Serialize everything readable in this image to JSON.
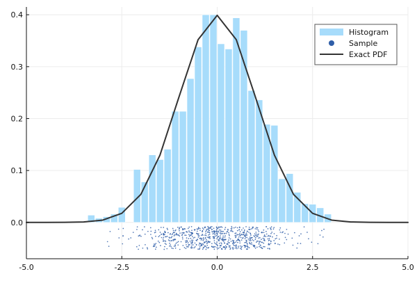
{
  "chart_data": {
    "type": "bar",
    "xlim": [
      -5.0,
      5.0
    ],
    "ylim": [
      -0.07,
      0.415
    ],
    "x_ticks": [
      {
        "value": -5.0,
        "label": "-5.0"
      },
      {
        "value": -2.5,
        "label": "-2.5"
      },
      {
        "value": 0.0,
        "label": "0.0"
      },
      {
        "value": 2.5,
        "label": "2.5"
      },
      {
        "value": 5.0,
        "label": "5.0"
      }
    ],
    "y_ticks": [
      {
        "value": 0.0,
        "label": "0.0"
      },
      {
        "value": 0.1,
        "label": "0.1"
      },
      {
        "value": 0.2,
        "label": "0.2"
      },
      {
        "value": 0.3,
        "label": "0.3"
      },
      {
        "value": 0.4,
        "label": "0.4"
      }
    ],
    "grid": true,
    "legend_position": "top-right",
    "colors": {
      "histogram": "#a7dcfb",
      "sample": "#2f5ea8",
      "pdf": "#333333",
      "grid": "#ececec",
      "axis": "#111111"
    },
    "series": [
      {
        "name": "Histogram",
        "type": "bar",
        "bins": [
          {
            "x0": -3.4,
            "x1": -3.2,
            "value": 0.014
          },
          {
            "x0": -3.2,
            "x1": -3.0,
            "value": 0.008
          },
          {
            "x0": -3.0,
            "x1": -2.8,
            "value": 0.011
          },
          {
            "x0": -2.8,
            "x1": -2.6,
            "value": 0.016
          },
          {
            "x0": -2.6,
            "x1": -2.4,
            "value": 0.029
          },
          {
            "x0": -2.4,
            "x1": -2.2,
            "value": 0.0
          },
          {
            "x0": -2.2,
            "x1": -2.0,
            "value": 0.102
          },
          {
            "x0": -2.0,
            "x1": -1.8,
            "value": 0.078
          },
          {
            "x0": -1.8,
            "x1": -1.6,
            "value": 0.13
          },
          {
            "x0": -1.6,
            "x1": -1.4,
            "value": 0.121
          },
          {
            "x0": -1.4,
            "x1": -1.2,
            "value": 0.141
          },
          {
            "x0": -1.2,
            "x1": -1.0,
            "value": 0.214
          },
          {
            "x0": -1.0,
            "x1": -0.8,
            "value": 0.214
          },
          {
            "x0": -0.8,
            "x1": -0.6,
            "value": 0.277
          },
          {
            "x0": -0.6,
            "x1": -0.4,
            "value": 0.338
          },
          {
            "x0": -0.4,
            "x1": -0.2,
            "value": 0.4
          },
          {
            "x0": -0.2,
            "x1": 0.0,
            "value": 0.4
          },
          {
            "x0": 0.0,
            "x1": 0.2,
            "value": 0.344
          },
          {
            "x0": 0.2,
            "x1": 0.4,
            "value": 0.334
          },
          {
            "x0": 0.4,
            "x1": 0.6,
            "value": 0.394
          },
          {
            "x0": 0.6,
            "x1": 0.8,
            "value": 0.37
          },
          {
            "x0": 0.8,
            "x1": 1.0,
            "value": 0.254
          },
          {
            "x0": 1.0,
            "x1": 1.2,
            "value": 0.236
          },
          {
            "x0": 1.2,
            "x1": 1.4,
            "value": 0.189
          },
          {
            "x0": 1.4,
            "x1": 1.6,
            "value": 0.187
          },
          {
            "x0": 1.6,
            "x1": 1.8,
            "value": 0.084
          },
          {
            "x0": 1.8,
            "x1": 2.0,
            "value": 0.094
          },
          {
            "x0": 2.0,
            "x1": 2.2,
            "value": 0.058
          },
          {
            "x0": 2.2,
            "x1": 2.4,
            "value": 0.036
          },
          {
            "x0": 2.4,
            "x1": 2.6,
            "value": 0.035
          },
          {
            "x0": 2.6,
            "x1": 2.8,
            "value": 0.028
          },
          {
            "x0": 2.8,
            "x1": 3.0,
            "value": 0.016
          }
        ]
      },
      {
        "name": "Sample",
        "type": "scatter"
      },
      {
        "name": "Exact PDF",
        "type": "line",
        "x": [
          -5.0,
          -4.5,
          -4.0,
          -3.5,
          -3.0,
          -2.5,
          -2.0,
          -1.5,
          -1.0,
          -0.5,
          0.0,
          0.5,
          1.0,
          1.5,
          2.0,
          2.5,
          3.0,
          3.5,
          4.0,
          4.5,
          5.0
        ],
        "y": [
          0.0,
          0.0,
          0.0001,
          0.0009,
          0.0044,
          0.0175,
          0.054,
          0.1295,
          0.242,
          0.3521,
          0.3989,
          0.3521,
          0.242,
          0.1295,
          0.054,
          0.0175,
          0.0044,
          0.0009,
          0.0001,
          0.0,
          0.0
        ]
      }
    ]
  }
}
